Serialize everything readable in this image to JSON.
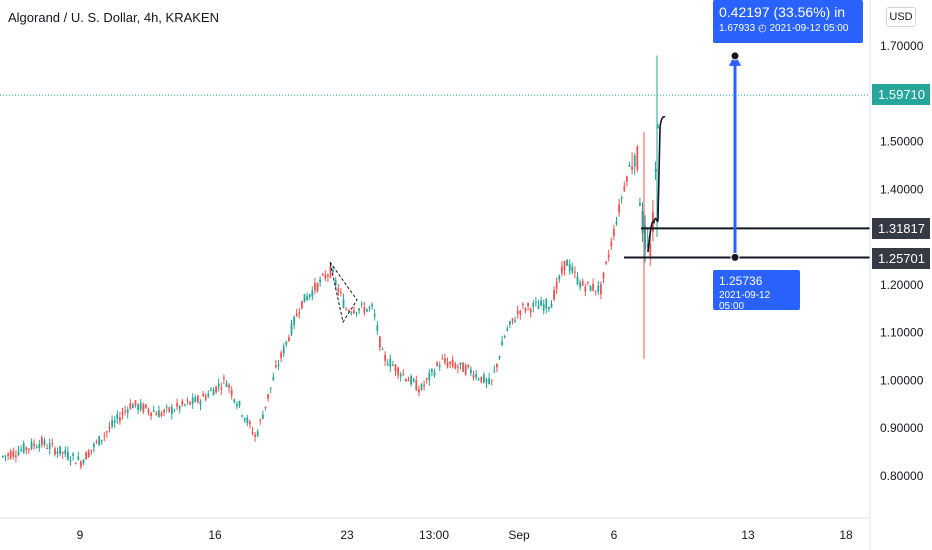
{
  "header": {
    "title": "Algorand / U. S. Dollar, 4h, KRAKEN",
    "currency_button": "USD"
  },
  "colors": {
    "up": "#26a69a",
    "down": "#ef5350",
    "accent": "#2962ff",
    "current_price": "#26a69a",
    "level_box": "#363a45"
  },
  "chart_data": {
    "type": "candlestick",
    "symbol": "Algorand / U. S. Dollar",
    "interval": "4h",
    "exchange": "KRAKEN",
    "y_axis": {
      "ticks": [
        "1.70000",
        "1.50000",
        "1.40000",
        "1.20000",
        "1.10000",
        "1.00000",
        "0.90000",
        "0.80000"
      ],
      "range": [
        0.76,
        1.8
      ]
    },
    "x_axis": {
      "ticks": [
        "9",
        "16",
        "23",
        "13:00",
        "Sep",
        "6",
        "13",
        "18"
      ]
    },
    "last_price": "1.59710",
    "horizontal_levels": [
      "1.31817",
      "1.25701"
    ],
    "measure": {
      "top_value": "0.42197 (33.56%) in",
      "top_detail": "1.67933",
      "top_time": "2021-09-12  05:00",
      "bottom_value": "1.25736",
      "bottom_time": "2021-09-12 05:00"
    }
  }
}
